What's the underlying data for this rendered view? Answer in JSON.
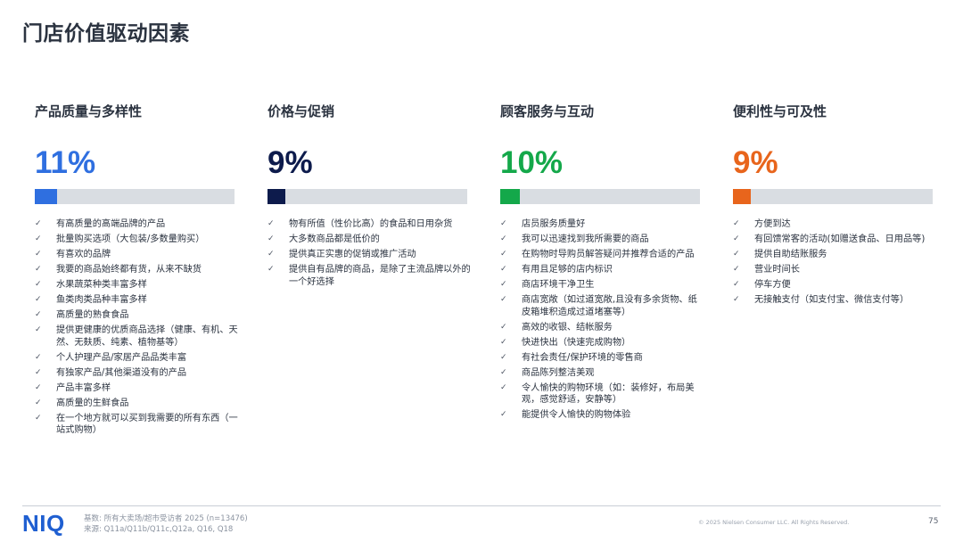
{
  "page": {
    "title": "门店价值驱动因素"
  },
  "check_icon": "✓",
  "columns": [
    {
      "title": "产品质量与多样性",
      "percent_label": "11%",
      "percent": 11,
      "color": "#2f6fe0",
      "items": [
        "有高质量的高端品牌的产品",
        "批量购买选项（大包装/多数量购买）",
        "有喜欢的品牌",
        "我要的商品始终都有货，从来不缺货",
        "水果蔬菜种类丰富多样",
        "鱼类肉类品种丰富多样",
        "高质量的熟食食品",
        "提供更健康的优质商品选择（健康、有机、天然、无麸质、纯素、植物基等）",
        "个人护理产品/家居产品品类丰富",
        "有独家产品/其他渠道没有的产品",
        "产品丰富多样",
        "高质量的生鲜食品",
        "在一个地方就可以买到我需要的所有东西（一站式购物）"
      ]
    },
    {
      "title": "价格与促销",
      "percent_label": "9%",
      "percent": 9,
      "color": "#0d1b4c",
      "items": [
        "物有所值（性价比高）的食品和日用杂货",
        "大多数商品都是低价的",
        "提供真正实惠的促销或推广活动",
        "提供自有品牌的商品，是除了主流品牌以外的一个好选择"
      ]
    },
    {
      "title": "顾客服务与互动",
      "percent_label": "10%",
      "percent": 10,
      "color": "#14a84a",
      "items": [
        "店员服务质量好",
        "我可以迅速找到我所需要的商品",
        "在购物时导购员解答疑问并推荐合适的产品",
        "有用且足够的店内标识",
        "商店环境干净卫生",
        "商店宽敞（如过道宽敞,且没有多余货物、纸皮箱堆积造成过道堵塞等）",
        "高效的收银、结帐服务",
        "快进快出（快速完成购物）",
        "有社会责任/保护环境的零售商",
        "商品陈列整洁美观",
        "令人愉快的购物环境（如：装修好，布局美观，感觉舒适，安静等）",
        "能提供令人愉快的购物体验"
      ]
    },
    {
      "title": "便利性与可及性",
      "percent_label": "9%",
      "percent": 9,
      "color": "#e8651c",
      "items": [
        "方便到达",
        "有回馈常客的活动(如赠送食品、日用品等)",
        "提供自助结账服务",
        "营业时间长",
        "停车方便",
        "无接触支付（如支付宝、微信支付等）"
      ]
    }
  ],
  "footer": {
    "logo": "NIQ",
    "source_line1": "基数: 所有大卖场/超市受访者 2025 (n=13476)",
    "source_line2": "来源: Q11a/Q11b/Q11c,Q12a, Q16, Q18",
    "copyright": "© 2025 Nielsen Consumer LLC. All Rights Reserved.",
    "page_number": "75"
  }
}
